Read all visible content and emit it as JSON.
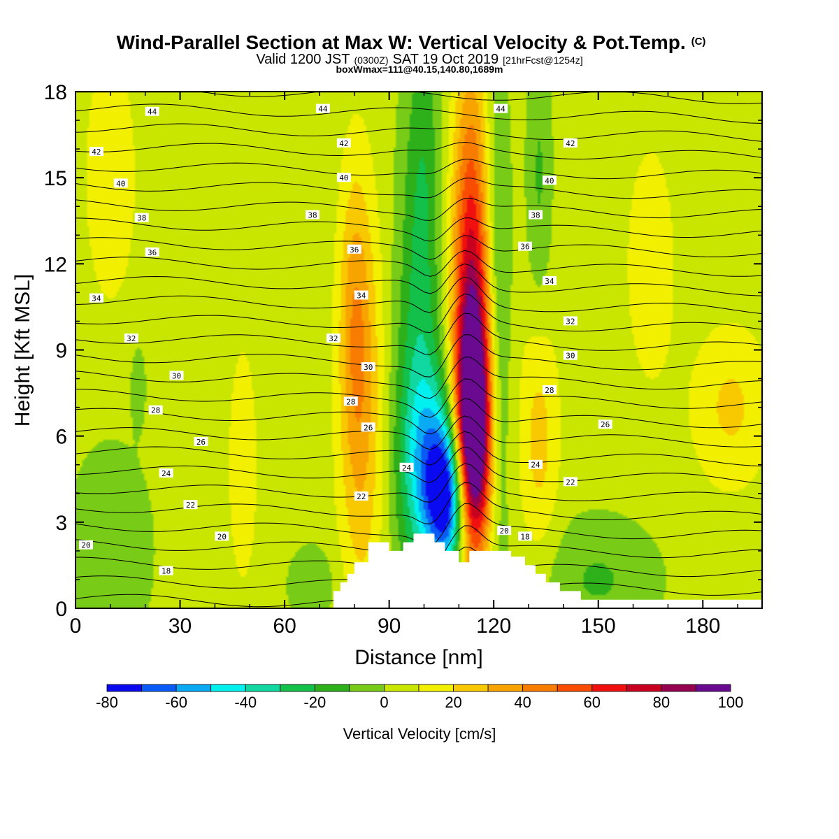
{
  "title": {
    "line1_main": "Wind-Parallel Section at Max W: Vertical Velocity & Pot.Temp.",
    "line1_mark": "(C)",
    "line2_a": "Valid 1200 JST",
    "line2_b": "(0300Z)",
    "line2_c": "SAT 19 Oct 2019",
    "line2_d": "[21hrFcst@1254z]",
    "line3": "boxWmax=111@40.15,140.80,1689m"
  },
  "chart_data": {
    "type": "heatmap",
    "xlabel": "Distance [nm]",
    "ylabel": "Height [Kft MSL]",
    "xlim": [
      0,
      197
    ],
    "ylim": [
      0,
      18
    ],
    "x_ticks": [
      0,
      30,
      60,
      90,
      120,
      150,
      180
    ],
    "y_ticks": [
      0,
      3,
      6,
      9,
      12,
      15,
      18
    ],
    "colorbar": {
      "label": "Vertical Velocity [cm/s]",
      "levels": [
        -80,
        -70,
        -60,
        -50,
        -40,
        -30,
        -20,
        -10,
        0,
        10,
        20,
        30,
        40,
        50,
        60,
        70,
        80,
        90,
        100
      ],
      "tick_values": [
        -80,
        -60,
        -40,
        -20,
        0,
        20,
        40,
        60,
        80,
        100
      ],
      "tick_labels": [
        "-80",
        "-60",
        "-40",
        "-20",
        "0",
        "20",
        "40",
        "60",
        "80",
        "100"
      ],
      "colors": [
        "#0a0af0",
        "#0a5af5",
        "#0aaaf5",
        "#00f0f0",
        "#10d8a0",
        "#12c04a",
        "#2eb01a",
        "#78cc18",
        "#c8e600",
        "#f2f000",
        "#f8c800",
        "#f8a400",
        "#f87c00",
        "#f84c00",
        "#f01010",
        "#c80020",
        "#960050",
        "#6a0a90"
      ]
    },
    "w_features": [
      {
        "x": 107,
        "y": 3.8,
        "value": -72,
        "sx": 4.5,
        "sy": 1.8
      },
      {
        "x": 102,
        "y": 5.2,
        "value": -40,
        "sx": 6.0,
        "sy": 2.5
      },
      {
        "x": 97,
        "y": 8.0,
        "value": -18,
        "sx": 4.5,
        "sy": 6.0
      },
      {
        "x": 100,
        "y": 14.5,
        "value": -18,
        "sx": 3.5,
        "sy": 5.0
      },
      {
        "x": 114,
        "y": 6.0,
        "value": 100,
        "sx": 3.5,
        "sy": 2.8
      },
      {
        "x": 114,
        "y": 9.0,
        "value": 55,
        "sx": 4.0,
        "sy": 5.0
      },
      {
        "x": 113,
        "y": 14.0,
        "value": 25,
        "sx": 3.5,
        "sy": 4.5
      },
      {
        "x": 121,
        "y": 6.5,
        "value": -16,
        "sx": 2.5,
        "sy": 5.0
      },
      {
        "x": 121,
        "y": 14.0,
        "value": -15,
        "sx": 2.5,
        "sy": 4.0
      },
      {
        "x": 133,
        "y": 15.0,
        "value": -15,
        "sx": 2.5,
        "sy": 3.5
      },
      {
        "x": 82,
        "y": 7.0,
        "value": 28,
        "sx": 4.5,
        "sy": 5.0
      },
      {
        "x": 80,
        "y": 10.5,
        "value": 18,
        "sx": 3.0,
        "sy": 3.5
      },
      {
        "x": 133,
        "y": 6.0,
        "value": 20,
        "sx": 4.0,
        "sy": 3.0
      },
      {
        "x": 10,
        "y": 15.0,
        "value": 16,
        "sx": 5.0,
        "sy": 3.0
      },
      {
        "x": 48,
        "y": 5.0,
        "value": 14,
        "sx": 3.0,
        "sy": 3.0
      },
      {
        "x": 165,
        "y": 12.0,
        "value": 14,
        "sx": 5.0,
        "sy": 3.0
      },
      {
        "x": 188,
        "y": 7.0,
        "value": 18,
        "sx": 8.0,
        "sy": 2.0
      },
      {
        "x": 10,
        "y": 2.0,
        "value": -14,
        "sx": 8.0,
        "sy": 2.5
      },
      {
        "x": 150,
        "y": 1.0,
        "value": -15,
        "sx": 12.0,
        "sy": 1.5
      },
      {
        "x": 68,
        "y": 0.8,
        "value": -12,
        "sx": 5.0,
        "sy": 1.0
      },
      {
        "x": 18,
        "y": 7.8,
        "value": -10,
        "sx": 1.5,
        "sy": 1.0
      }
    ],
    "terrain_nm_kft": [
      [
        74,
        0
      ],
      [
        74,
        0.6
      ],
      [
        76,
        0.6
      ],
      [
        76,
        0.9
      ],
      [
        78,
        0.9
      ],
      [
        78,
        1.2
      ],
      [
        80,
        1.2
      ],
      [
        80,
        1.6
      ],
      [
        84,
        1.6
      ],
      [
        84,
        2.3
      ],
      [
        90,
        2.3
      ],
      [
        90,
        2.0
      ],
      [
        94,
        2.0
      ],
      [
        94,
        2.3
      ],
      [
        97,
        2.3
      ],
      [
        97,
        2.6
      ],
      [
        103,
        2.6
      ],
      [
        103,
        2.3
      ],
      [
        106,
        2.3
      ],
      [
        106,
        2.0
      ],
      [
        110,
        2.0
      ],
      [
        110,
        1.6
      ],
      [
        113,
        1.6
      ],
      [
        113,
        2.0
      ],
      [
        125,
        2.0
      ],
      [
        125,
        1.8
      ],
      [
        129,
        1.8
      ],
      [
        129,
        1.5
      ],
      [
        132,
        1.5
      ],
      [
        132,
        1.2
      ],
      [
        135,
        1.2
      ],
      [
        135,
        0.9
      ],
      [
        139,
        0.9
      ],
      [
        139,
        0.6
      ],
      [
        145,
        0.6
      ],
      [
        145,
        0.3
      ],
      [
        197,
        0.3
      ],
      [
        197,
        0
      ],
      [
        74,
        0
      ]
    ],
    "theta_contours": [
      18,
      19,
      20,
      21,
      22,
      23,
      24,
      25,
      26,
      27,
      28,
      29,
      30,
      31,
      32,
      33,
      34,
      35,
      36,
      37,
      38,
      39,
      40,
      41,
      42,
      43,
      44,
      45
    ],
    "theta_labels": [
      {
        "text": "44",
        "x": 22,
        "y": 17.3
      },
      {
        "text": "44",
        "x": 71,
        "y": 17.4
      },
      {
        "text": "44",
        "x": 122,
        "y": 17.4
      },
      {
        "text": "42",
        "x": 6,
        "y": 15.9
      },
      {
        "text": "42",
        "x": 77,
        "y": 16.2
      },
      {
        "text": "42",
        "x": 142,
        "y": 16.2
      },
      {
        "text": "40",
        "x": 13,
        "y": 14.8
      },
      {
        "text": "40",
        "x": 77,
        "y": 15.0
      },
      {
        "text": "40",
        "x": 136,
        "y": 14.9
      },
      {
        "text": "38",
        "x": 19,
        "y": 13.6
      },
      {
        "text": "38",
        "x": 68,
        "y": 13.7
      },
      {
        "text": "38",
        "x": 132,
        "y": 13.7
      },
      {
        "text": "36",
        "x": 22,
        "y": 12.4
      },
      {
        "text": "36",
        "x": 80,
        "y": 12.5
      },
      {
        "text": "36",
        "x": 129,
        "y": 12.6
      },
      {
        "text": "34",
        "x": 6,
        "y": 10.8
      },
      {
        "text": "34",
        "x": 82,
        "y": 10.9
      },
      {
        "text": "34",
        "x": 136,
        "y": 11.4
      },
      {
        "text": "32",
        "x": 16,
        "y": 9.4
      },
      {
        "text": "32",
        "x": 74,
        "y": 9.4
      },
      {
        "text": "32",
        "x": 142,
        "y": 10.0
      },
      {
        "text": "30",
        "x": 29,
        "y": 8.1
      },
      {
        "text": "30",
        "x": 84,
        "y": 8.4
      },
      {
        "text": "30",
        "x": 142,
        "y": 8.8
      },
      {
        "text": "28",
        "x": 23,
        "y": 6.9
      },
      {
        "text": "28",
        "x": 79,
        "y": 7.2
      },
      {
        "text": "28",
        "x": 136,
        "y": 7.6
      },
      {
        "text": "26",
        "x": 36,
        "y": 5.8
      },
      {
        "text": "26",
        "x": 84,
        "y": 6.3
      },
      {
        "text": "26",
        "x": 152,
        "y": 6.4
      },
      {
        "text": "24",
        "x": 26,
        "y": 4.7
      },
      {
        "text": "24",
        "x": 95,
        "y": 4.9
      },
      {
        "text": "24",
        "x": 132,
        "y": 5.0
      },
      {
        "text": "22",
        "x": 33,
        "y": 3.6
      },
      {
        "text": "22",
        "x": 82,
        "y": 3.9
      },
      {
        "text": "22",
        "x": 142,
        "y": 4.4
      },
      {
        "text": "20",
        "x": 3,
        "y": 2.2
      },
      {
        "text": "20",
        "x": 42,
        "y": 2.5
      },
      {
        "text": "20",
        "x": 123,
        "y": 2.7
      },
      {
        "text": "18",
        "x": 26,
        "y": 1.3
      },
      {
        "text": "18",
        "x": 129,
        "y": 2.5
      }
    ]
  }
}
